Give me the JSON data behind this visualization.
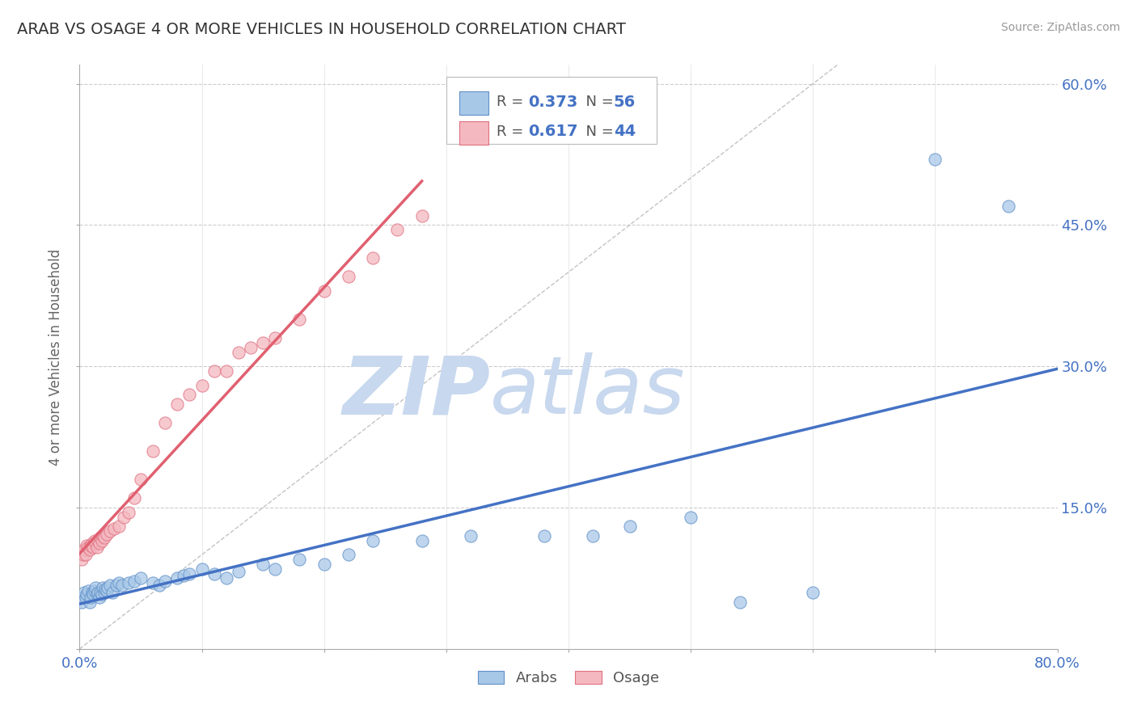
{
  "title": "ARAB VS OSAGE 4 OR MORE VEHICLES IN HOUSEHOLD CORRELATION CHART",
  "source": "Source: ZipAtlas.com",
  "ylabel": "4 or more Vehicles in Household",
  "xlim": [
    0.0,
    0.8
  ],
  "ylim": [
    0.0,
    0.62
  ],
  "xticks": [
    0.0,
    0.1,
    0.2,
    0.3,
    0.4,
    0.5,
    0.6,
    0.7,
    0.8
  ],
  "yticks": [
    0.0,
    0.15,
    0.3,
    0.45,
    0.6
  ],
  "arab_R": "0.373",
  "arab_N": "56",
  "osage_R": "0.617",
  "osage_N": "44",
  "arab_color": "#A8C8E8",
  "osage_color": "#F4B8C0",
  "arab_edge_color": "#6090C8",
  "osage_edge_color": "#E07080",
  "arab_line_color": "#4472C4",
  "osage_line_color": "#E06070",
  "watermark_zip": "ZIP",
  "watermark_atlas": "atlas",
  "watermark_color_zip": "#C8D8EE",
  "watermark_color_atlas": "#C8D8EE",
  "background_color": "#FFFFFF",
  "grid_color": "#CCCCCC",
  "arab_x": [
    0.002,
    0.003,
    0.004,
    0.005,
    0.006,
    0.007,
    0.008,
    0.009,
    0.01,
    0.011,
    0.012,
    0.013,
    0.014,
    0.015,
    0.016,
    0.017,
    0.018,
    0.019,
    0.02,
    0.021,
    0.022,
    0.023,
    0.025,
    0.027,
    0.03,
    0.032,
    0.035,
    0.04,
    0.045,
    0.05,
    0.06,
    0.065,
    0.07,
    0.08,
    0.085,
    0.09,
    0.1,
    0.11,
    0.12,
    0.13,
    0.15,
    0.16,
    0.18,
    0.2,
    0.22,
    0.24,
    0.28,
    0.32,
    0.38,
    0.42,
    0.45,
    0.5,
    0.54,
    0.6,
    0.7,
    0.76
  ],
  "arab_y": [
    0.05,
    0.055,
    0.06,
    0.055,
    0.058,
    0.062,
    0.05,
    0.055,
    0.06,
    0.058,
    0.062,
    0.065,
    0.058,
    0.06,
    0.055,
    0.06,
    0.058,
    0.065,
    0.06,
    0.063,
    0.062,
    0.065,
    0.068,
    0.06,
    0.068,
    0.07,
    0.068,
    0.07,
    0.072,
    0.075,
    0.07,
    0.068,
    0.072,
    0.075,
    0.078,
    0.08,
    0.085,
    0.08,
    0.075,
    0.082,
    0.09,
    0.085,
    0.095,
    0.09,
    0.1,
    0.115,
    0.115,
    0.12,
    0.12,
    0.12,
    0.13,
    0.14,
    0.05,
    0.06,
    0.52,
    0.47
  ],
  "osage_x": [
    0.002,
    0.003,
    0.004,
    0.005,
    0.006,
    0.007,
    0.008,
    0.009,
    0.01,
    0.011,
    0.012,
    0.013,
    0.014,
    0.015,
    0.016,
    0.017,
    0.018,
    0.019,
    0.02,
    0.022,
    0.025,
    0.028,
    0.032,
    0.036,
    0.04,
    0.045,
    0.05,
    0.06,
    0.07,
    0.08,
    0.09,
    0.1,
    0.11,
    0.12,
    0.13,
    0.14,
    0.15,
    0.16,
    0.18,
    0.2,
    0.22,
    0.24,
    0.26,
    0.28
  ],
  "osage_y": [
    0.095,
    0.1,
    0.105,
    0.1,
    0.11,
    0.108,
    0.105,
    0.11,
    0.112,
    0.108,
    0.115,
    0.112,
    0.108,
    0.115,
    0.112,
    0.118,
    0.115,
    0.12,
    0.118,
    0.122,
    0.125,
    0.128,
    0.13,
    0.14,
    0.145,
    0.16,
    0.18,
    0.21,
    0.24,
    0.26,
    0.27,
    0.28,
    0.295,
    0.295,
    0.315,
    0.32,
    0.325,
    0.33,
    0.35,
    0.38,
    0.395,
    0.415,
    0.445,
    0.46
  ]
}
